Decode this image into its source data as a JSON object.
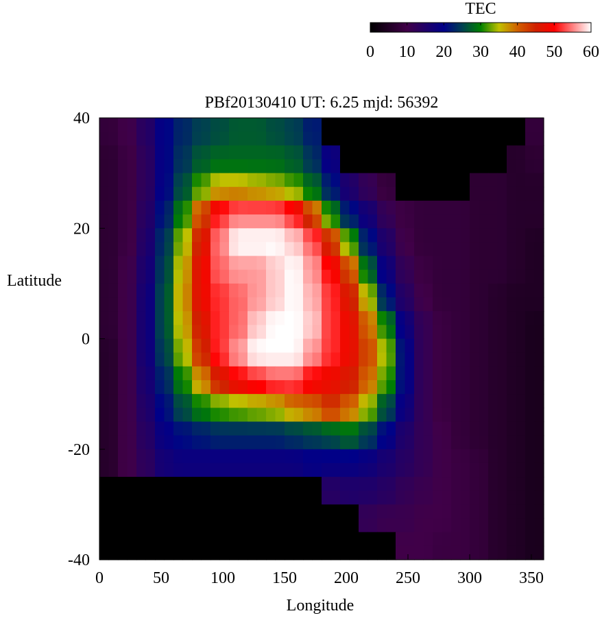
{
  "chart_data": {
    "type": "heatmap",
    "title": "PBf20130410  UT: 6.25  mjd: 56392",
    "xlabel": "Longitude",
    "ylabel": "Latitude",
    "xlim": [
      0,
      360
    ],
    "ylim": [
      -40,
      40
    ],
    "xticks": [
      0,
      50,
      100,
      150,
      200,
      250,
      300,
      350
    ],
    "yticks": [
      -40,
      -20,
      0,
      20,
      40
    ],
    "colorbar": {
      "label": "TEC",
      "range": [
        0,
        60
      ],
      "ticks": [
        0,
        10,
        20,
        30,
        40,
        50,
        60
      ],
      "colormap": [
        {
          "v": 0,
          "color": "#000000"
        },
        {
          "v": 10,
          "color": "#400048"
        },
        {
          "v": 20,
          "color": "#000088"
        },
        {
          "v": 25,
          "color": "#004050"
        },
        {
          "v": 30,
          "color": "#008000"
        },
        {
          "v": 35,
          "color": "#c0c000"
        },
        {
          "v": 40,
          "color": "#d06000"
        },
        {
          "v": 45,
          "color": "#d02000"
        },
        {
          "v": 50,
          "color": "#ff0000"
        },
        {
          "v": 60,
          "color": "#ffffff"
        }
      ],
      "placement": "top-right"
    },
    "grid": false,
    "lon_centers": [
      7.5,
      22.5,
      37.5,
      52.5,
      67.5,
      82.5,
      97.5,
      112.5,
      127.5,
      142.5,
      157.5,
      172.5,
      187.5,
      202.5,
      217.5,
      232.5,
      247.5,
      262.5,
      277.5,
      292.5,
      307.5,
      322.5,
      337.5,
      352.5
    ],
    "lat_centers": [
      37.5,
      32.5,
      27.5,
      22.5,
      17.5,
      12.5,
      7.5,
      2.5,
      -2.5,
      -7.5,
      -12.5,
      -17.5,
      -22.5,
      -27.5,
      -32.5,
      -37.5
    ],
    "values": [
      [
        8,
        10,
        14,
        20,
        23,
        25,
        26,
        27,
        27,
        26,
        25,
        22,
        0,
        0,
        0,
        0,
        0,
        0,
        0,
        0,
        0,
        0,
        0,
        8
      ],
      [
        7,
        9,
        13,
        20,
        24,
        27,
        28,
        28,
        28,
        28,
        27,
        24,
        18,
        0,
        0,
        0,
        0,
        0,
        0,
        0,
        0,
        0,
        6,
        7
      ],
      [
        7,
        9,
        13,
        20,
        26,
        32,
        36,
        36,
        35,
        34,
        32,
        28,
        22,
        15,
        12,
        8,
        0,
        0,
        0,
        0,
        7,
        7,
        6,
        6
      ],
      [
        7,
        9,
        14,
        22,
        30,
        42,
        52,
        55,
        55,
        55,
        52,
        42,
        30,
        22,
        17,
        12,
        9,
        8,
        8,
        8,
        7,
        7,
        6,
        6
      ],
      [
        7,
        9,
        15,
        24,
        34,
        46,
        55,
        60,
        60,
        60,
        58,
        54,
        44,
        32,
        22,
        15,
        10,
        8,
        8,
        8,
        7,
        7,
        6,
        5
      ],
      [
        7,
        10,
        16,
        25,
        36,
        48,
        54,
        56,
        56,
        58,
        60,
        56,
        50,
        42,
        28,
        18,
        12,
        9,
        8,
        8,
        7,
        7,
        6,
        5
      ],
      [
        7,
        10,
        17,
        26,
        37,
        48,
        52,
        54,
        56,
        58,
        60,
        57,
        52,
        46,
        35,
        22,
        14,
        10,
        8,
        8,
        7,
        6,
        5,
        5
      ],
      [
        7,
        10,
        17,
        26,
        36,
        46,
        52,
        54,
        58,
        60,
        60,
        58,
        52,
        48,
        40,
        30,
        18,
        12,
        9,
        8,
        7,
        6,
        5,
        4
      ],
      [
        6,
        10,
        17,
        25,
        34,
        44,
        52,
        56,
        60,
        60,
        60,
        56,
        52,
        48,
        42,
        34,
        20,
        12,
        9,
        8,
        7,
        6,
        5,
        4
      ],
      [
        6,
        10,
        16,
        23,
        30,
        38,
        46,
        50,
        52,
        54,
        54,
        50,
        48,
        46,
        40,
        32,
        20,
        12,
        9,
        8,
        7,
        6,
        5,
        4
      ],
      [
        6,
        10,
        15,
        21,
        26,
        30,
        32,
        33,
        34,
        35,
        38,
        40,
        44,
        40,
        34,
        26,
        18,
        12,
        9,
        8,
        7,
        6,
        5,
        4
      ],
      [
        6,
        10,
        14,
        19,
        21,
        22,
        23,
        23,
        23,
        23,
        24,
        25,
        26,
        28,
        25,
        20,
        15,
        12,
        10,
        8,
        7,
        6,
        5,
        4
      ],
      [
        6,
        10,
        13,
        17,
        18,
        18,
        18,
        18,
        18,
        18,
        18,
        19,
        19,
        19,
        18,
        16,
        14,
        12,
        10,
        9,
        8,
        6,
        5,
        4
      ],
      [
        0,
        0,
        0,
        0,
        0,
        0,
        0,
        0,
        0,
        0,
        0,
        0,
        14,
        15,
        15,
        14,
        12,
        11,
        10,
        9,
        8,
        6,
        5,
        4
      ],
      [
        0,
        0,
        0,
        0,
        0,
        0,
        0,
        0,
        0,
        0,
        0,
        0,
        0,
        0,
        12,
        11,
        11,
        10,
        10,
        9,
        8,
        6,
        5,
        4
      ],
      [
        0,
        0,
        0,
        0,
        0,
        0,
        0,
        0,
        0,
        0,
        0,
        0,
        0,
        0,
        0,
        0,
        10,
        10,
        9,
        9,
        8,
        6,
        5,
        4
      ]
    ]
  }
}
